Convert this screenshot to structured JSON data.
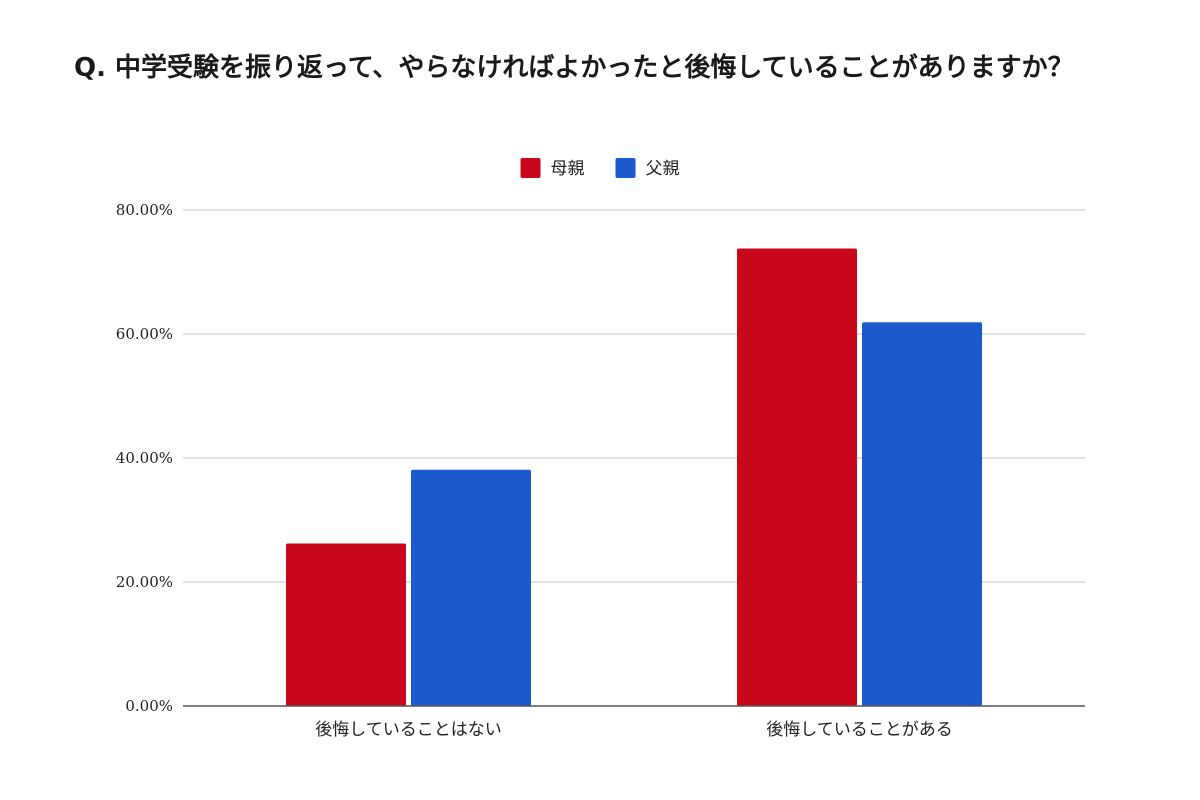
{
  "chart_data": {
    "type": "bar",
    "title": "Q. 中学受験を振り返って、やらなければよかったと後悔していることがありますか？",
    "categories": [
      "後悔していることはない",
      "後悔していることがある"
    ],
    "series": [
      {
        "name": "母親",
        "values": [
          26.2,
          73.8
        ],
        "color": "#c8071a"
      },
      {
        "name": "父親",
        "values": [
          38.1,
          61.9
        ],
        "color": "#1b5acd"
      }
    ],
    "ylim": [
      0,
      80
    ],
    "yticks": [
      "0.00%",
      "20.00%",
      "40.00%",
      "60.00%",
      "80.00%"
    ],
    "ytick_values": [
      0,
      20,
      40,
      60,
      80
    ],
    "grid": true,
    "legend_position": "top-center"
  }
}
